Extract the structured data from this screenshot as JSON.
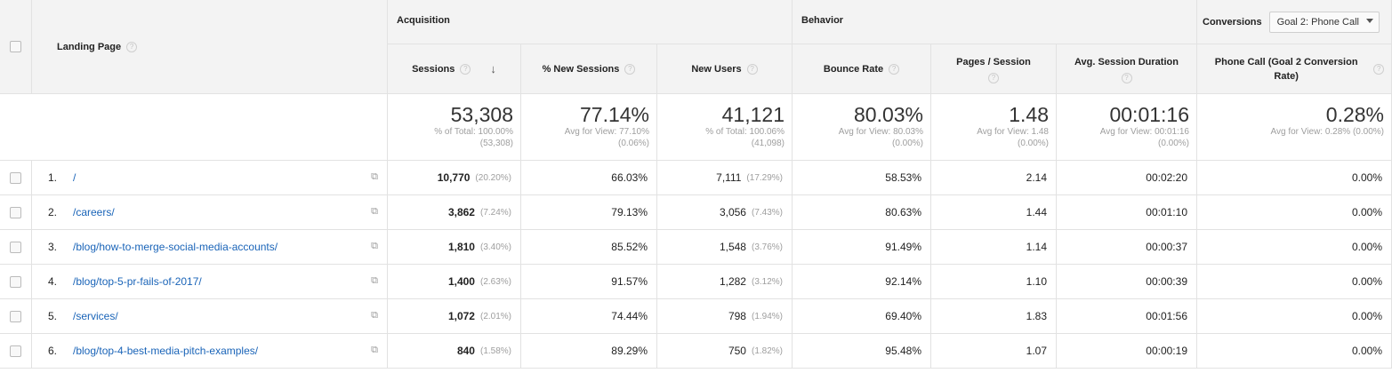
{
  "table": {
    "landing_page_header": "Landing Page",
    "groups": {
      "acquisition": "Acquisition",
      "behavior": "Behavior",
      "conversions": "Conversions",
      "goal_select": "Goal 2: Phone Call"
    },
    "columns": {
      "sessions": "Sessions",
      "pct_new_sessions": "% New Sessions",
      "new_users": "New Users",
      "bounce_rate": "Bounce Rate",
      "pages_session": "Pages / Session",
      "avg_duration": "Avg. Session Duration",
      "phone_call": "Phone Call (Goal 2 Conversion Rate)"
    },
    "totals": {
      "sessions": {
        "value": "53,308",
        "line1": "% of Total: 100.00%",
        "line2": "(53,308)"
      },
      "pct_new_sessions": {
        "value": "77.14%",
        "line1": "Avg for View: 77.10%",
        "line2": "(0.06%)"
      },
      "new_users": {
        "value": "41,121",
        "line1": "% of Total: 100.06%",
        "line2": "(41,098)"
      },
      "bounce_rate": {
        "value": "80.03%",
        "line1": "Avg for View: 80.03%",
        "line2": "(0.00%)"
      },
      "pages_session": {
        "value": "1.48",
        "line1": "Avg for View: 1.48",
        "line2": "(0.00%)"
      },
      "avg_duration": {
        "value": "00:01:16",
        "line1": "Avg for View: 00:01:16",
        "line2": "(0.00%)"
      },
      "phone_call": {
        "value": "0.28%",
        "line1": "Avg for View: 0.28% (0.00%)",
        "line2": ""
      }
    },
    "rows": [
      {
        "idx": "1.",
        "page": "/",
        "sessions": "10,770",
        "sessions_pct": "(20.20%)",
        "pct_new": "66.03%",
        "new_users": "7,111",
        "new_users_pct": "(17.29%)",
        "bounce": "58.53%",
        "pages": "2.14",
        "duration": "00:02:20",
        "phone": "0.00%"
      },
      {
        "idx": "2.",
        "page": "/careers/",
        "sessions": "3,862",
        "sessions_pct": "(7.24%)",
        "pct_new": "79.13%",
        "new_users": "3,056",
        "new_users_pct": "(7.43%)",
        "bounce": "80.63%",
        "pages": "1.44",
        "duration": "00:01:10",
        "phone": "0.00%"
      },
      {
        "idx": "3.",
        "page": "/blog/how-to-merge-social-media-accounts/",
        "sessions": "1,810",
        "sessions_pct": "(3.40%)",
        "pct_new": "85.52%",
        "new_users": "1,548",
        "new_users_pct": "(3.76%)",
        "bounce": "91.49%",
        "pages": "1.14",
        "duration": "00:00:37",
        "phone": "0.00%"
      },
      {
        "idx": "4.",
        "page": "/blog/top-5-pr-fails-of-2017/",
        "sessions": "1,400",
        "sessions_pct": "(2.63%)",
        "pct_new": "91.57%",
        "new_users": "1,282",
        "new_users_pct": "(3.12%)",
        "bounce": "92.14%",
        "pages": "1.10",
        "duration": "00:00:39",
        "phone": "0.00%"
      },
      {
        "idx": "5.",
        "page": "/services/",
        "sessions": "1,072",
        "sessions_pct": "(2.01%)",
        "pct_new": "74.44%",
        "new_users": "798",
        "new_users_pct": "(1.94%)",
        "bounce": "69.40%",
        "pages": "1.83",
        "duration": "00:01:56",
        "phone": "0.00%"
      },
      {
        "idx": "6.",
        "page": "/blog/top-4-best-media-pitch-examples/",
        "sessions": "840",
        "sessions_pct": "(1.58%)",
        "pct_new": "89.29%",
        "new_users": "750",
        "new_users_pct": "(1.82%)",
        "bounce": "95.48%",
        "pages": "1.07",
        "duration": "00:00:19",
        "phone": "0.00%"
      }
    ],
    "icons": {
      "help": "question-mark-circle",
      "sort": "arrow-down",
      "open_page": "external-window",
      "select_caret": "caret-down"
    }
  }
}
